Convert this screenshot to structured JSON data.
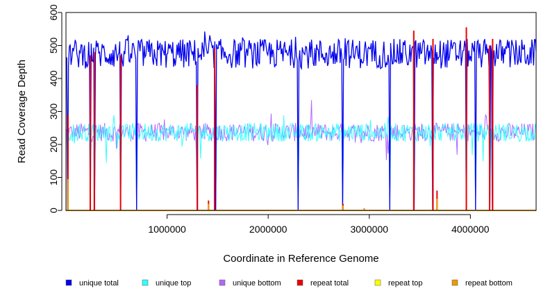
{
  "chart_data": {
    "type": "line",
    "title": "",
    "xlabel": "Coordinate in Reference Genome",
    "ylabel": "Read Coverage Depth",
    "xlim": [
      0,
      4650000
    ],
    "ylim": [
      0,
      600
    ],
    "x_ticks": [
      1000000,
      2000000,
      3000000,
      4000000
    ],
    "x_tick_labels": [
      "1000000",
      "2000000",
      "3000000",
      "4000000"
    ],
    "y_ticks": [
      0,
      100,
      200,
      300,
      400,
      500,
      600
    ],
    "y_tick_labels": [
      "0",
      "100",
      "200",
      "300",
      "400",
      "500",
      "600"
    ],
    "grid": false,
    "legend_position": "bottom",
    "series": [
      {
        "name": "unique total",
        "color": "#0000ee",
        "baseline": 475,
        "noise": 45,
        "spike_amp": 60
      },
      {
        "name": "unique top",
        "color": "#33ffff",
        "baseline": 237,
        "noise": 28,
        "spike_amp": 80
      },
      {
        "name": "unique bottom",
        "color": "#b266ff",
        "baseline": 237,
        "noise": 28,
        "spike_amp": 80
      },
      {
        "name": "repeat total",
        "color": "#ee0000",
        "baseline": 0,
        "noise": 0
      },
      {
        "name": "repeat top",
        "color": "#ffff00",
        "baseline": 0,
        "noise": 0
      },
      {
        "name": "repeat bottom",
        "color": "#ee9900",
        "baseline": 0,
        "noise": 0
      }
    ],
    "coverage_dropouts": [
      20000,
      240000,
      280000,
      540000,
      700000,
      1300000,
      1480000,
      2300000,
      2740000,
      3200000,
      3440000,
      3630000,
      3960000,
      4050000,
      4190000,
      4220000
    ],
    "repeat_spikes": [
      {
        "x": 20000,
        "total": 290,
        "bottom": 95
      },
      {
        "x": 240000,
        "total": 470
      },
      {
        "x": 280000,
        "total": 480
      },
      {
        "x": 540000,
        "total": 470
      },
      {
        "x": 1300000,
        "total": 380
      },
      {
        "x": 1410000,
        "total": 30,
        "bottom": 20
      },
      {
        "x": 1470000,
        "total": 490
      },
      {
        "x": 2740000,
        "total": 20,
        "bottom": 15
      },
      {
        "x": 2950000,
        "total": 6,
        "bottom": 5
      },
      {
        "x": 3440000,
        "total": 545
      },
      {
        "x": 3630000,
        "total": 520
      },
      {
        "x": 3670000,
        "total": 60,
        "bottom": 35
      },
      {
        "x": 3960000,
        "total": 555
      },
      {
        "x": 4190000,
        "total": 500
      },
      {
        "x": 4220000,
        "total": 520
      }
    ]
  }
}
